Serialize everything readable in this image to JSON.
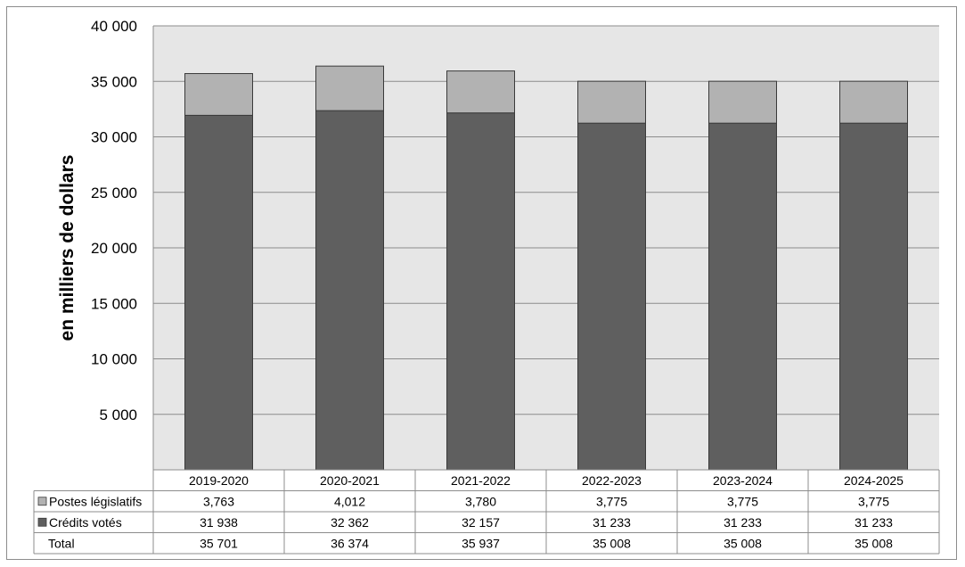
{
  "chart_data": {
    "type": "bar",
    "stacked": true,
    "title": "",
    "xlabel": "",
    "ylabel": "en milliers de dollars",
    "ylim": [
      0,
      40000
    ],
    "yticks": [
      5000,
      10000,
      15000,
      20000,
      25000,
      30000,
      35000,
      40000
    ],
    "ytick_labels": [
      "5 000",
      "10 000",
      "15 000",
      "20 000",
      "25 000",
      "30 000",
      "35 000",
      "40 000"
    ],
    "grid": true,
    "categories": [
      "2019-2020",
      "2020-2021",
      "2021-2022",
      "2022-2023",
      "2023-2024",
      "2024-2025"
    ],
    "series": [
      {
        "name": "Crédits votés",
        "color": "#5f5f5f",
        "values": [
          31938,
          32362,
          32157,
          31233,
          31233,
          31233
        ],
        "labels": [
          "31 938",
          "32 362",
          "32 157",
          "31 233",
          "31 233",
          "31 233"
        ]
      },
      {
        "name": "Postes législatifs",
        "color": "#b2b2b2",
        "values": [
          3763,
          4012,
          3780,
          3775,
          3775,
          3775
        ],
        "labels": [
          "3,763",
          "4,012",
          "3,780",
          "3,775",
          "3,775",
          "3,775"
        ]
      }
    ],
    "table_rows": [
      {
        "label": "Postes législatifs",
        "series": 1,
        "values": [
          "3,763",
          "4,012",
          "3,780",
          "3,775",
          "3,775",
          "3,775"
        ]
      },
      {
        "label": "Crédits votés",
        "series": 0,
        "values": [
          "31 938",
          "32 362",
          "32 157",
          "31 233",
          "31 233",
          "31 233"
        ]
      },
      {
        "label": "Total",
        "series": null,
        "values": [
          "35 701",
          "36 374",
          "35 937",
          "35 008",
          "35 008",
          "35 008"
        ]
      }
    ],
    "plot_background": "#e6e6e6",
    "gridline_color": "#8c8c8c"
  }
}
